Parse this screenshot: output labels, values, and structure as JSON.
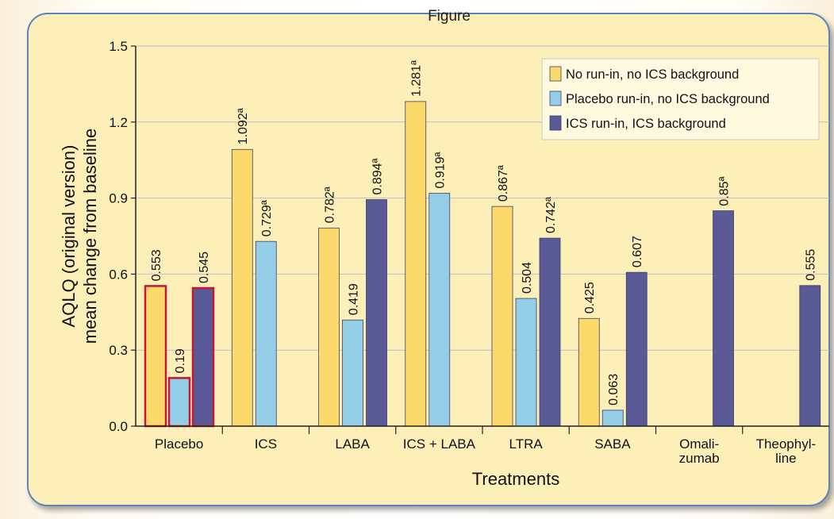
{
  "heading_fragment": "Figure",
  "chart_data": {
    "type": "bar",
    "title": "",
    "xlabel": "Treatments",
    "ylabel": [
      "AQLQ (original version)",
      "mean change from baseline"
    ],
    "ylim": [
      0,
      1.5
    ],
    "yticks": [
      "0.0",
      "0.3",
      "0.6",
      "0.9",
      "1.2",
      "1.5"
    ],
    "grid": true,
    "legend_position": "top-right",
    "categories": [
      [
        "Placebo"
      ],
      [
        "ICS"
      ],
      [
        "LABA"
      ],
      [
        "ICS + LABA"
      ],
      [
        "LTRA"
      ],
      [
        "SABA"
      ],
      [
        "Omali-",
        "zumab"
      ],
      [
        "Theophyl-",
        "line"
      ]
    ],
    "highlighted_category": "Placebo",
    "series": [
      {
        "name": "No run-in, no ICS background",
        "color": "#fbd96a",
        "values": [
          0.553,
          1.092,
          0.782,
          1.281,
          0.867,
          0.425,
          null,
          null
        ],
        "labels": [
          "0.553",
          "1.092ª",
          "0.782ª",
          "1.281ª",
          "0.867ª",
          "0.425",
          null,
          null
        ]
      },
      {
        "name": "Placebo run-in, no ICS background",
        "color": "#93cde6",
        "values": [
          0.19,
          0.729,
          0.419,
          0.919,
          0.504,
          0.063,
          null,
          null
        ],
        "labels": [
          "0.19",
          "0.729ª",
          "0.419",
          "0.919ª",
          "0.504",
          "0.063",
          null,
          null
        ]
      },
      {
        "name": "ICS run-in,  ICS background",
        "color": "#5a5b96",
        "values": [
          0.545,
          null,
          0.894,
          null,
          0.742,
          0.607,
          0.85,
          0.555
        ],
        "labels": [
          "0.545",
          null,
          "0.894ª",
          null,
          "0.742ª",
          "0.607",
          "0.85ª",
          "0.555"
        ]
      }
    ]
  }
}
